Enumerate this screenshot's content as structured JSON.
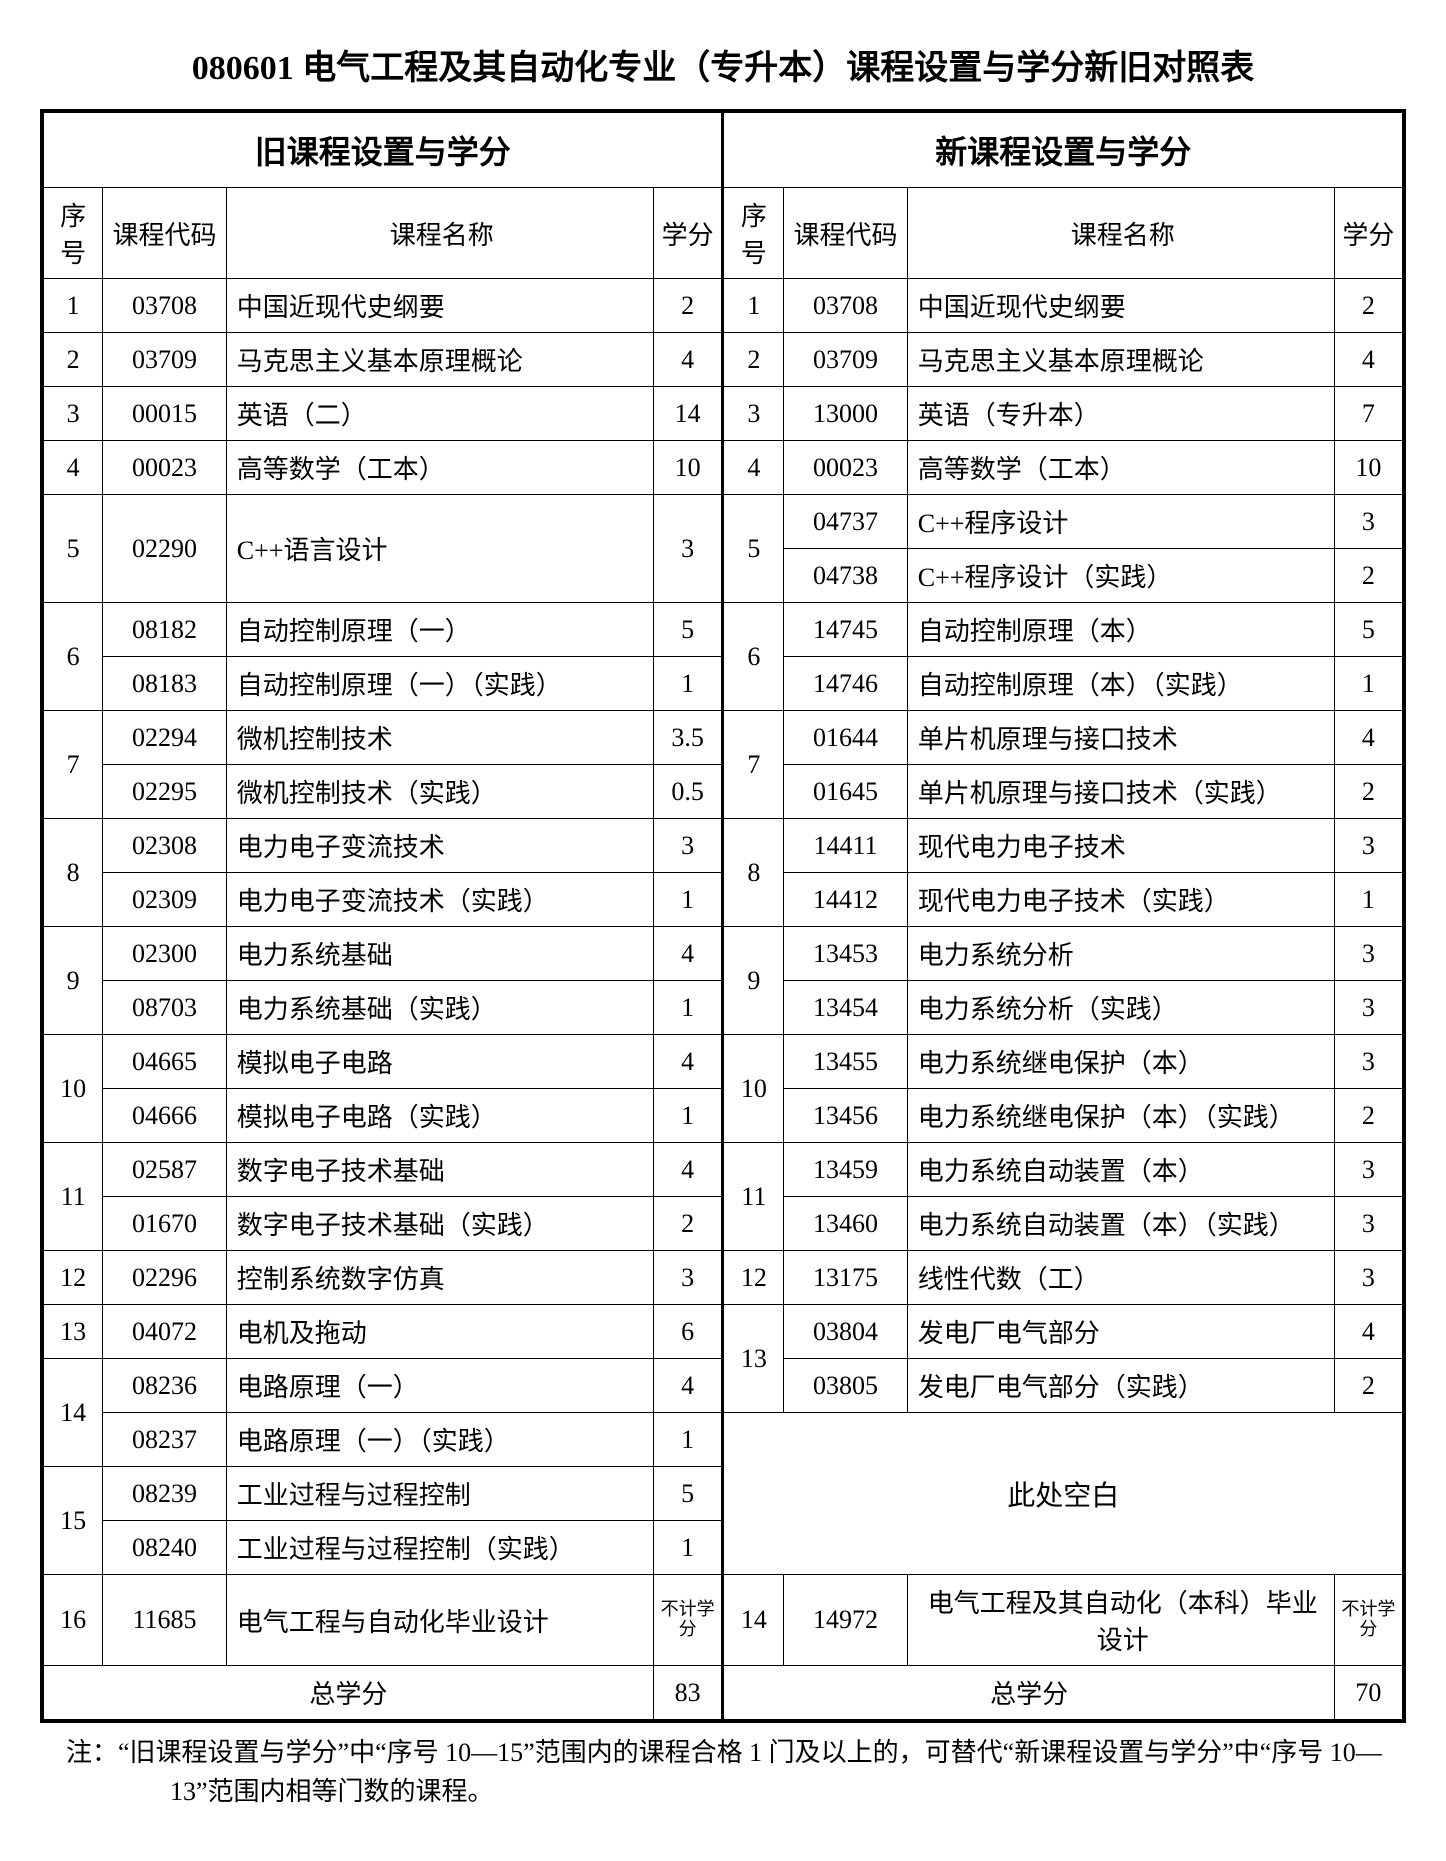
{
  "title": "080601 电气工程及其自动化专业（专升本）课程设置与学分新旧对照表",
  "group_old": "旧课程设置与学分",
  "group_new": "新课程设置与学分",
  "hdr": {
    "seq": "序号",
    "code": "课程代码",
    "name": "课程名称",
    "cred": "学分"
  },
  "old_rows": [
    {
      "seq": "1",
      "rowspan": 1,
      "code": "03708",
      "name": "中国近现代史纲要",
      "cred": "2"
    },
    {
      "seq": "2",
      "rowspan": 1,
      "code": "03709",
      "name": "马克思主义基本原理概论",
      "cred": "4"
    },
    {
      "seq": "3",
      "rowspan": 1,
      "code": "00015",
      "name": "英语（二）",
      "cred": "14"
    },
    {
      "seq": "4",
      "rowspan": 1,
      "code": "00023",
      "name": "高等数学（工本）",
      "cred": "10"
    },
    {
      "seq": "5",
      "rowspan": 2,
      "code": "02290",
      "coderowspan": 2,
      "name": "C++语言设计",
      "namerowspan": 2,
      "cred": "3",
      "credrowspan": 2
    },
    {
      "seq": "",
      "rowspan": 0
    },
    {
      "seq": "6",
      "rowspan": 2,
      "code": "08182",
      "name": "自动控制原理（一）",
      "cred": "5"
    },
    {
      "seq": "",
      "rowspan": 0,
      "code": "08183",
      "name": "自动控制原理（一）（实践）",
      "cred": "1"
    },
    {
      "seq": "7",
      "rowspan": 2,
      "code": "02294",
      "name": "微机控制技术",
      "cred": "3.5"
    },
    {
      "seq": "",
      "rowspan": 0,
      "code": "02295",
      "name": "微机控制技术（实践）",
      "cred": "0.5"
    },
    {
      "seq": "8",
      "rowspan": 2,
      "code": "02308",
      "name": "电力电子变流技术",
      "cred": "3"
    },
    {
      "seq": "",
      "rowspan": 0,
      "code": "02309",
      "name": "电力电子变流技术（实践）",
      "cred": "1"
    },
    {
      "seq": "9",
      "rowspan": 2,
      "code": "02300",
      "name": "电力系统基础",
      "cred": "4"
    },
    {
      "seq": "",
      "rowspan": 0,
      "code": "08703",
      "name": "电力系统基础（实践）",
      "cred": "1"
    },
    {
      "seq": "10",
      "rowspan": 2,
      "code": "04665",
      "name": "模拟电子电路",
      "cred": "4"
    },
    {
      "seq": "",
      "rowspan": 0,
      "code": "04666",
      "name": "模拟电子电路（实践）",
      "cred": "1"
    },
    {
      "seq": "11",
      "rowspan": 2,
      "code": "02587",
      "name": "数字电子技术基础",
      "cred": "4"
    },
    {
      "seq": "",
      "rowspan": 0,
      "code": "01670",
      "name": "数字电子技术基础（实践）",
      "cred": "2"
    },
    {
      "seq": "12",
      "rowspan": 1,
      "code": "02296",
      "name": "控制系统数字仿真",
      "cred": "3"
    },
    {
      "seq": "13",
      "rowspan": 1,
      "code": "04072",
      "name": "电机及拖动",
      "cred": "6"
    },
    {
      "seq": "14",
      "rowspan": 2,
      "code": "08236",
      "name": "电路原理（一）",
      "cred": "4"
    },
    {
      "seq": "",
      "rowspan": 0,
      "code": "08237",
      "name": "电路原理（一）（实践）",
      "cred": "1"
    },
    {
      "seq": "15",
      "rowspan": 2,
      "code": "08239",
      "name": "工业过程与过程控制",
      "cred": "5"
    },
    {
      "seq": "",
      "rowspan": 0,
      "code": "08240",
      "name": "工业过程与过程控制（实践）",
      "cred": "1"
    },
    {
      "seq": "16",
      "rowspan": 1,
      "code": "11685",
      "name": "电气工程与自动化毕业设计",
      "cred": "不计学分",
      "small": true
    }
  ],
  "new_rows": [
    {
      "seq": "1",
      "rowspan": 1,
      "code": "03708",
      "name": "中国近现代史纲要",
      "cred": "2"
    },
    {
      "seq": "2",
      "rowspan": 1,
      "code": "03709",
      "name": "马克思主义基本原理概论",
      "cred": "4"
    },
    {
      "seq": "3",
      "rowspan": 1,
      "code": "13000",
      "name": "英语（专升本）",
      "cred": "7"
    },
    {
      "seq": "4",
      "rowspan": 1,
      "code": "00023",
      "name": "高等数学（工本）",
      "cred": "10"
    },
    {
      "seq": "5",
      "rowspan": 2,
      "code": "04737",
      "name": "C++程序设计",
      "cred": "3"
    },
    {
      "seq": "",
      "rowspan": 0,
      "code": "04738",
      "name": "C++程序设计（实践）",
      "cred": "2"
    },
    {
      "seq": "6",
      "rowspan": 2,
      "code": "14745",
      "name": "自动控制原理（本）",
      "cred": "5"
    },
    {
      "seq": "",
      "rowspan": 0,
      "code": "14746",
      "name": "自动控制原理（本）（实践）",
      "cred": "1"
    },
    {
      "seq": "7",
      "rowspan": 2,
      "code": "01644",
      "name": "单片机原理与接口技术",
      "cred": "4"
    },
    {
      "seq": "",
      "rowspan": 0,
      "code": "01645",
      "name": "单片机原理与接口技术（实践）",
      "cred": "2"
    },
    {
      "seq": "8",
      "rowspan": 2,
      "code": "14411",
      "name": "现代电力电子技术",
      "cred": "3"
    },
    {
      "seq": "",
      "rowspan": 0,
      "code": "14412",
      "name": "现代电力电子技术（实践）",
      "cred": "1"
    },
    {
      "seq": "9",
      "rowspan": 2,
      "code": "13453",
      "name": "电力系统分析",
      "cred": "3"
    },
    {
      "seq": "",
      "rowspan": 0,
      "code": "13454",
      "name": "电力系统分析（实践）",
      "cred": "3"
    },
    {
      "seq": "10",
      "rowspan": 2,
      "code": "13455",
      "name": "电力系统继电保护（本）",
      "cred": "3"
    },
    {
      "seq": "",
      "rowspan": 0,
      "code": "13456",
      "name": "电力系统继电保护（本）（实践）",
      "cred": "2"
    },
    {
      "seq": "11",
      "rowspan": 2,
      "code": "13459",
      "name": "电力系统自动装置（本）",
      "cred": "3"
    },
    {
      "seq": "",
      "rowspan": 0,
      "code": "13460",
      "name": "电力系统自动装置（本）（实践）",
      "cred": "3"
    },
    {
      "seq": "12",
      "rowspan": 1,
      "code": "13175",
      "name": "线性代数（工）",
      "cred": "3"
    },
    {
      "seq": "13",
      "rowspan": 2,
      "code": "03804",
      "name": "发电厂电气部分",
      "cred": "4"
    },
    {
      "seq": "",
      "rowspan": 0,
      "code": "03805",
      "name": "发电厂电气部分（实践）",
      "cred": "2"
    }
  ],
  "blank_text": "此处空白",
  "new_final": {
    "seq": "14",
    "code": "14972",
    "name": "电气工程及其自动化（本科）毕业设计",
    "cred": "不计学分"
  },
  "total_label": "总学分",
  "old_total": "83",
  "new_total": "70",
  "note": "注：“旧课程设置与学分”中“序号 10—15”范围内的课程合格 1 门及以上的，可替代“新课程设置与学分”中“序号 10—13”范围内相等门数的课程。"
}
